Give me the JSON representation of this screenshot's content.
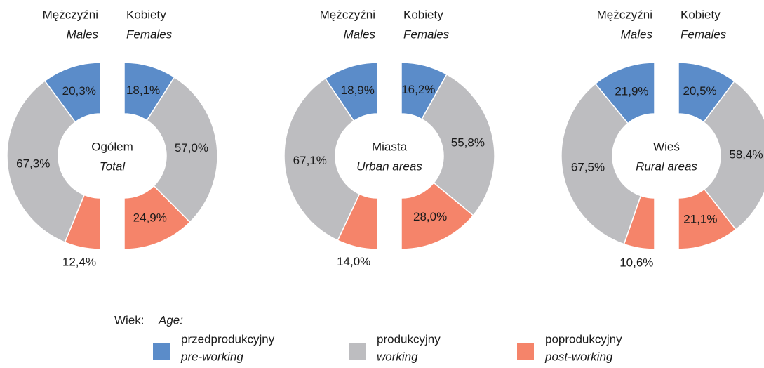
{
  "legend": {
    "title": "Wiek:",
    "title_en": "Age:",
    "items": [
      {
        "name": "przedprodukcyjny",
        "name_en": "pre-working",
        "color": "#5b8cc9"
      },
      {
        "name": "produkcyjny",
        "name_en": "working",
        "color": "#bdbdc0"
      },
      {
        "name": "poprodukcyjny",
        "name_en": "post-working",
        "color": "#f5846a"
      }
    ]
  },
  "chart_data": [
    {
      "type": "split-donut",
      "center_label": [
        "Ogółem",
        "Total"
      ],
      "groups": [
        {
          "name": "Mężczyźni",
          "name_en": "Males",
          "values": [
            20.3,
            67.3,
            12.4
          ],
          "value_labels": [
            "20,3%",
            "67,3%",
            "12,4%"
          ]
        },
        {
          "name": "Kobiety",
          "name_en": "Females",
          "values": [
            18.1,
            57.0,
            24.9
          ],
          "value_labels": [
            "18,1%",
            "57,0%",
            "24,9%"
          ]
        }
      ]
    },
    {
      "type": "split-donut",
      "center_label": [
        "Miasta",
        "Urban areas"
      ],
      "groups": [
        {
          "name": "Mężczyźni",
          "name_en": "Males",
          "values": [
            18.9,
            67.1,
            14.0
          ],
          "value_labels": [
            "18,9%",
            "67,1%",
            "14,0%"
          ]
        },
        {
          "name": "Kobiety",
          "name_en": "Females",
          "values": [
            16.2,
            55.8,
            28.0
          ],
          "value_labels": [
            "16,2%",
            "55,8%",
            "28,0%"
          ]
        }
      ]
    },
    {
      "type": "split-donut",
      "center_label": [
        "Wieś",
        "Rural areas"
      ],
      "groups": [
        {
          "name": "Mężczyźni",
          "name_en": "Males",
          "values": [
            21.9,
            67.5,
            10.6
          ],
          "value_labels": [
            "21,9%",
            "67,5%",
            "10,6%"
          ]
        },
        {
          "name": "Kobiety",
          "name_en": "Females",
          "values": [
            20.5,
            58.4,
            21.1
          ],
          "value_labels": [
            "20,5%",
            "58,4%",
            "21,1%"
          ]
        }
      ]
    }
  ]
}
